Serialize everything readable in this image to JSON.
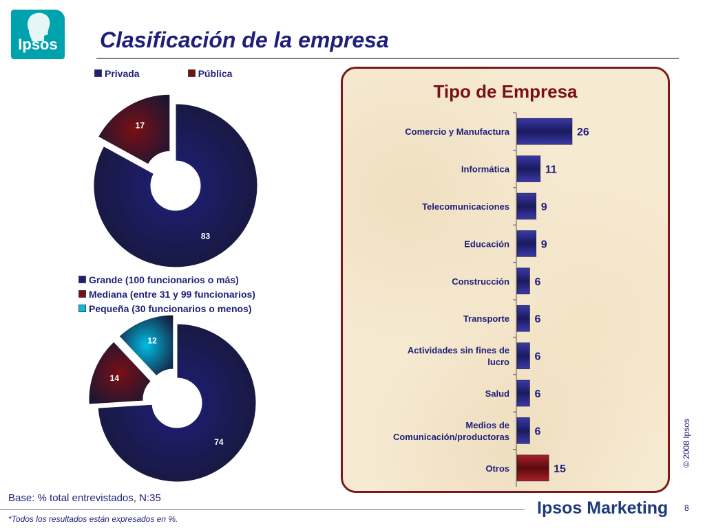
{
  "page": {
    "title": "Clasificación de la empresa",
    "logo_text": "Ipsos",
    "base": "Base: % total entrevistados, N:35",
    "note": "*Todos los resultados están expresados en %.",
    "brand": "Ipsos Marketing",
    "page_number": "8",
    "copyright": "© 2008 Ipsos"
  },
  "colors": {
    "navy": "#1f1f7a",
    "maroon": "#7a0f14",
    "cyan": "#00bfe6",
    "logo": "#00a3ad"
  },
  "chart_data": [
    {
      "type": "pie",
      "style": "exploded-donut",
      "categories": [
        "Privada",
        "Pública"
      ],
      "values": [
        83,
        17
      ],
      "colors": [
        "#1f1f7a",
        "#7a0f14"
      ],
      "legend": "top"
    },
    {
      "type": "pie",
      "style": "exploded-donut",
      "categories": [
        "Grande (100 funcionarios o más)",
        "Mediana (entre 31 y 99 funcionarios)",
        "Pequeña (30 funcionarios o menos)"
      ],
      "values": [
        74,
        14,
        12
      ],
      "colors": [
        "#1f1f7a",
        "#7a0f14",
        "#00bfe6"
      ],
      "legend": "top"
    },
    {
      "type": "bar",
      "orientation": "horizontal",
      "title": "Tipo de Empresa",
      "categories": [
        "Comercio y Manufactura",
        "Informática",
        "Telecomunicaciones",
        "Educación",
        "Construcción",
        "Transporte",
        "Actividades sin fines de lucro",
        "Salud",
        "Medios de Comunicación/productoras",
        "Otros"
      ],
      "values": [
        26,
        11,
        9,
        9,
        6,
        6,
        6,
        6,
        6,
        15
      ],
      "colors": [
        "#1f1f7a",
        "#1f1f7a",
        "#1f1f7a",
        "#1f1f7a",
        "#1f1f7a",
        "#1f1f7a",
        "#1f1f7a",
        "#1f1f7a",
        "#1f1f7a",
        "#7a0f14"
      ],
      "xlim": [
        0,
        30
      ]
    }
  ]
}
